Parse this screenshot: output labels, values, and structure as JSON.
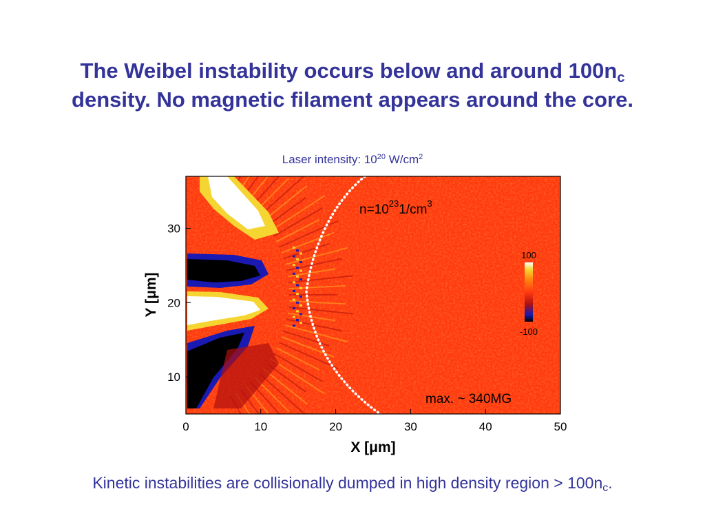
{
  "slide": {
    "title_line1_main": "The Weibel instability occurs below and around 100n",
    "title_line1_sub": "c",
    "title_line2": "density. No magnetic filament appears around the core.",
    "subtitle_pre": "Laser intensity: 10",
    "subtitle_exp": "20",
    "subtitle_mid": " W/cm",
    "subtitle_exp2": "2",
    "footer_main": "Kinetic instabilities are collisionally dumped in high density region > 100n",
    "footer_sub": "c",
    "footer_end": "."
  },
  "figure": {
    "xlabel": "X [μm]",
    "ylabel": "Y [μm]",
    "x_ticks": [
      "0",
      "10",
      "20",
      "30",
      "40",
      "50"
    ],
    "y_ticks": [
      "30",
      "20",
      "10"
    ],
    "density_label_pre": "n=10",
    "density_label_exp": "23",
    "density_label_unit": "1/cm",
    "density_label_unit_exp": "3",
    "max_label": "max. ~ 340MG",
    "colorbar_max": "100",
    "colorbar_min": "-100",
    "colors": {
      "background_field": "#ff3a10",
      "high": "#ffffff",
      "mid_high": "#f5d531",
      "low": "#000000",
      "mid_low": "#1a1ab3"
    }
  },
  "chart_data": {
    "type": "heatmap",
    "xlabel": "X [μm]",
    "ylabel": "Y [μm]",
    "xlim": [
      0,
      50
    ],
    "ylim": [
      5,
      37
    ],
    "x_ticks": [
      0,
      10,
      20,
      30,
      40,
      50
    ],
    "y_ticks": [
      10,
      20,
      30
    ],
    "colorbar": {
      "min": -100,
      "max": 100
    },
    "annotations": [
      "n=10^23 1/cm^3",
      "max. ~ 340MG"
    ]
  }
}
